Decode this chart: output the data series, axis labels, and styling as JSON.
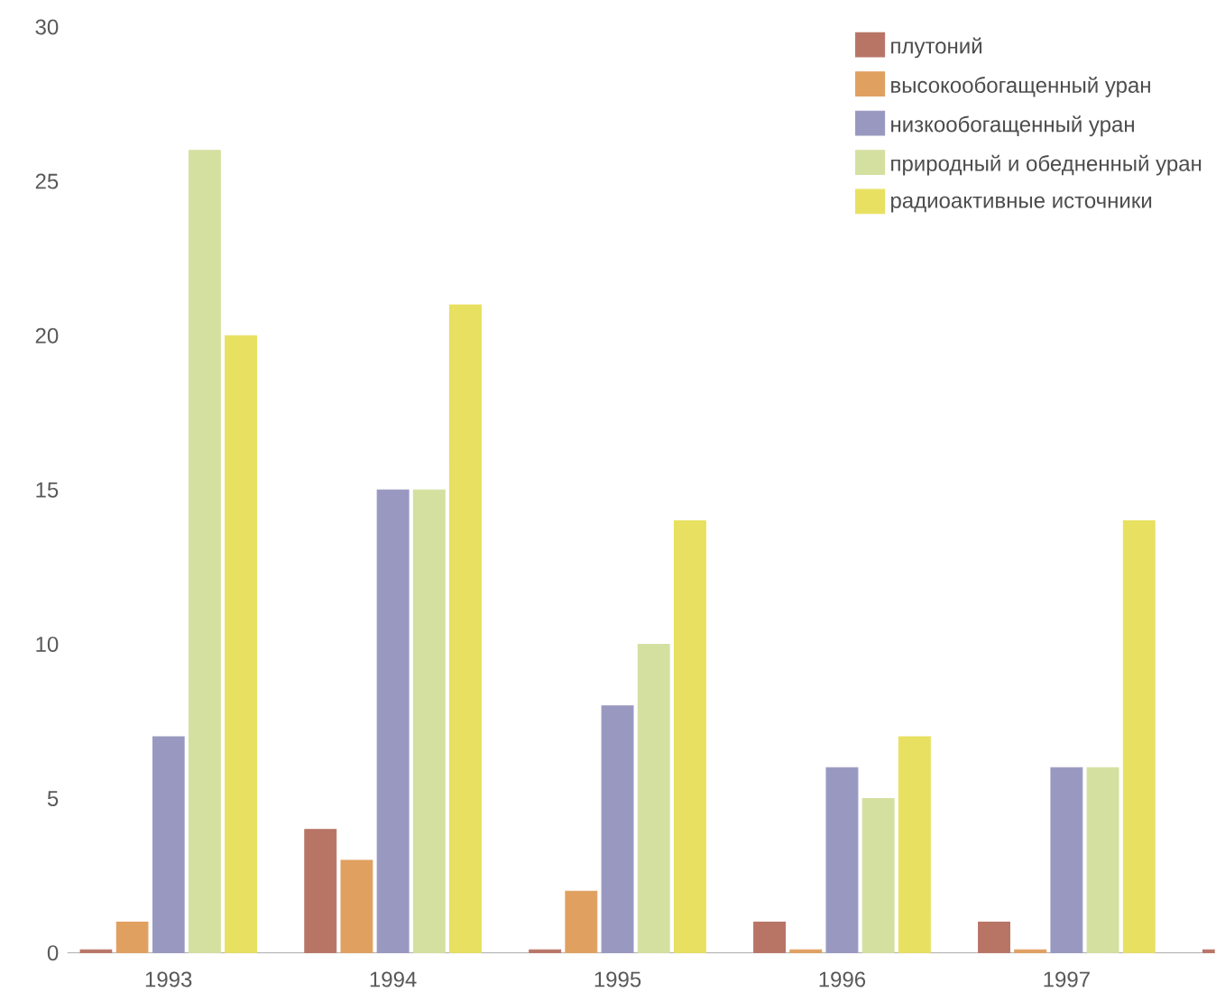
{
  "chart_data": {
    "type": "bar",
    "categories": [
      "1993",
      "1994",
      "1995",
      "1996",
      "1997",
      null
    ],
    "series": [
      {
        "name": "плутоний",
        "color": "#b87566",
        "values": [
          0.1,
          4,
          0.1,
          1,
          1,
          0.1
        ]
      },
      {
        "name": "высокообогащенный уран",
        "color": "#e0a060",
        "values": [
          1,
          3,
          2,
          0.1,
          0.1,
          null
        ]
      },
      {
        "name": "низкообогащенный уран",
        "color": "#9898c0",
        "values": [
          7,
          15,
          8,
          6,
          6,
          null
        ]
      },
      {
        "name": "природный и обедненный уран",
        "color": "#d4e0a0",
        "values": [
          26,
          15,
          10,
          5,
          6,
          null
        ]
      },
      {
        "name": "радиоактивные источники",
        "color": "#e8e060",
        "values": [
          20,
          21,
          14,
          7,
          14,
          null
        ]
      }
    ],
    "ylim": [
      0,
      30
    ],
    "yticks": [
      0,
      5,
      10,
      15,
      20,
      25,
      30
    ],
    "legend": "top right"
  }
}
